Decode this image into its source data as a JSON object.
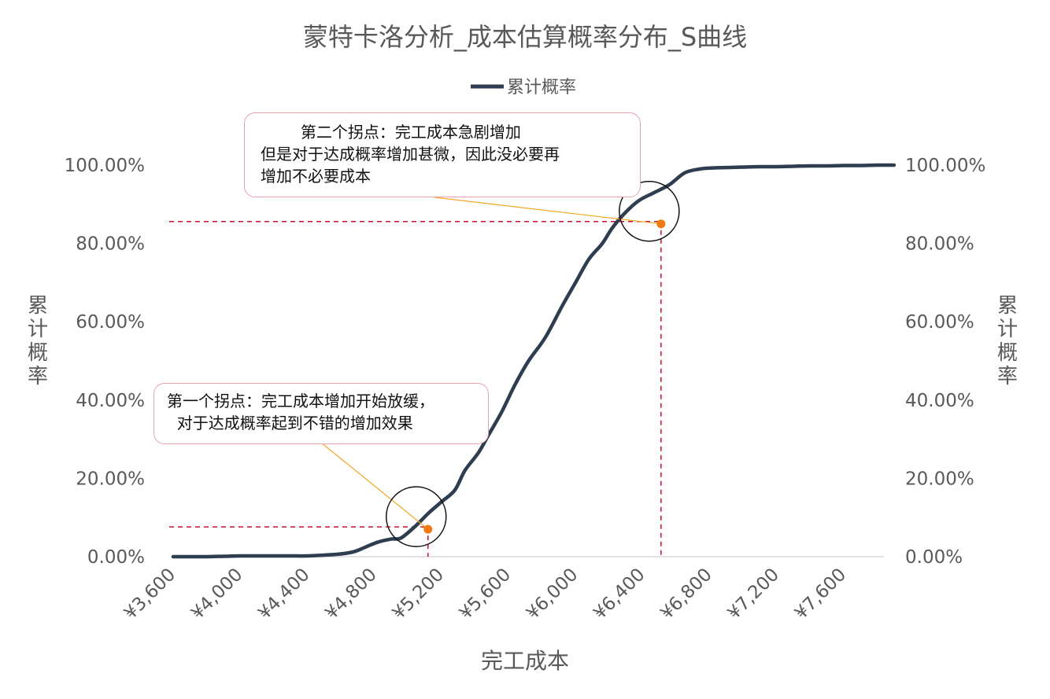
{
  "chart_data": {
    "type": "line",
    "title": "蒙特卡洛分析_成本估算概率分布_S曲线",
    "xlabel": "完工成本",
    "ylabel": "累计概率",
    "y2label": "累计概率",
    "xlim": [
      3600,
      7900
    ],
    "ylim": [
      0,
      1
    ],
    "x_ticks": [
      3600,
      4000,
      4400,
      4800,
      5200,
      5600,
      6000,
      6400,
      6800,
      7200,
      7600
    ],
    "x_tick_labels": [
      "¥3,600",
      "¥4,000",
      "¥4,400",
      "¥4,800",
      "¥5,200",
      "¥5,600",
      "¥6,000",
      "¥6,400",
      "¥6,800",
      "¥7,200",
      "¥7,600"
    ],
    "y_ticks": [
      0,
      0.2,
      0.4,
      0.6,
      0.8,
      1.0
    ],
    "y_tick_labels": [
      "0.00%",
      "20.00%",
      "40.00%",
      "60.00%",
      "80.00%",
      "100.00%"
    ],
    "legend_position": "top",
    "grid": false,
    "series": [
      {
        "name": "累计概率",
        "color": "#2e3e50",
        "x": [
          3600,
          3700,
          3800,
          3900,
          4000,
          4100,
          4200,
          4300,
          4400,
          4500,
          4600,
          4680,
          4750,
          4820,
          4900,
          4960,
          5050,
          5120,
          5200,
          5280,
          5340,
          5420,
          5480,
          5560,
          5640,
          5720,
          5820,
          5920,
          6000,
          6080,
          6160,
          6220,
          6300,
          6380,
          6470,
          6560,
          6650,
          6740,
          6830,
          6920,
          7000,
          7100,
          7200,
          7300,
          7400,
          7500,
          7600,
          7700,
          7800,
          7900
        ],
        "y": [
          0.0,
          0.0,
          0.0,
          0.001,
          0.002,
          0.002,
          0.002,
          0.002,
          0.002,
          0.004,
          0.007,
          0.013,
          0.025,
          0.037,
          0.045,
          0.048,
          0.08,
          0.11,
          0.14,
          0.17,
          0.22,
          0.265,
          0.31,
          0.37,
          0.44,
          0.5,
          0.56,
          0.64,
          0.7,
          0.76,
          0.8,
          0.84,
          0.88,
          0.91,
          0.93,
          0.95,
          0.98,
          0.99,
          0.993,
          0.994,
          0.995,
          0.996,
          0.996,
          0.997,
          0.998,
          0.998,
          0.999,
          0.999,
          1.0,
          1.0
        ]
      }
    ],
    "markers": [
      {
        "x": 5120,
        "y": 0.07,
        "color": "#f07a10"
      },
      {
        "x": 6510,
        "y": 0.85,
        "color": "#f07a10"
      }
    ],
    "colors": {
      "axis_text": "#595959",
      "title": "#595959",
      "guide_line": "#c8102e",
      "leader_line": "#f5a623",
      "circle": "#111111",
      "callout_border": "#e8a0ab"
    }
  },
  "annotations": {
    "callout_1": {
      "line1": "第一个拐点：完工成本增加开始放缓，",
      "line2": "  对于达成概率起到不错的增加效果"
    },
    "callout_2": {
      "line1": "        第二个拐点：完工成本急剧增加",
      "line2": "但是对于达成概率增加甚微，因此没必要再",
      "line3": "增加不必要成本"
    }
  }
}
